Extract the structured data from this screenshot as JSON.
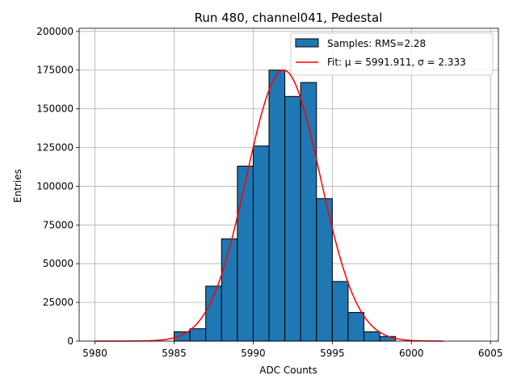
{
  "chart_data": {
    "type": "bar",
    "title": "Run 480, channel041, Pedestal",
    "xlabel": "ADC Counts",
    "ylabel": "Entries",
    "xlim": [
      5979,
      6005.5
    ],
    "ylim": [
      0,
      202000
    ],
    "xticks": [
      5980,
      5985,
      5990,
      5995,
      6000,
      6005
    ],
    "yticks": [
      0,
      25000,
      50000,
      75000,
      100000,
      125000,
      150000,
      175000,
      200000
    ],
    "grid": true,
    "legend_position": "top-right",
    "bin_width": 1,
    "bins": [
      {
        "x": 5985,
        "value": 6000
      },
      {
        "x": 5986,
        "value": 8000
      },
      {
        "x": 5987,
        "value": 35500
      },
      {
        "x": 5988,
        "value": 66000
      },
      {
        "x": 5989,
        "value": 113000
      },
      {
        "x": 5990,
        "value": 126000
      },
      {
        "x": 5991,
        "value": 175000
      },
      {
        "x": 5992,
        "value": 158000
      },
      {
        "x": 5993,
        "value": 167000
      },
      {
        "x": 5994,
        "value": 92000
      },
      {
        "x": 5995,
        "value": 38500
      },
      {
        "x": 5996,
        "value": 18500
      },
      {
        "x": 5997,
        "value": 6000
      },
      {
        "x": 5998,
        "value": 3000
      }
    ],
    "fit": {
      "mu": 5991.911,
      "sigma": 2.333,
      "amplitude": 175000,
      "x_range": [
        5980,
        6002
      ]
    },
    "series": [
      {
        "name": "Samples: RMS=2.28",
        "color": "#1f77b4"
      },
      {
        "name": "Fit: μ = 5991.911, σ = 2.333",
        "color": "#ff0000"
      }
    ]
  }
}
